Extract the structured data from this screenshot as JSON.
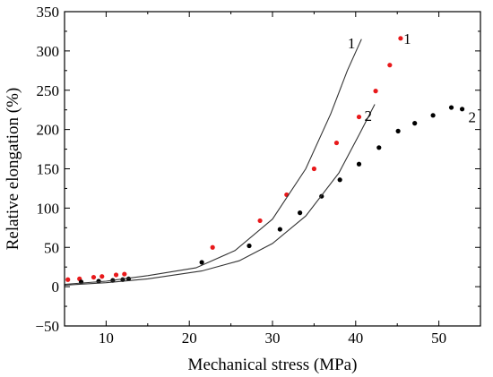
{
  "chart_data": {
    "type": "scatter",
    "xlabel": "Mechanical stress (MPa)",
    "ylabel": "Relative elongation (%)",
    "xlim": [
      5,
      55
    ],
    "ylim": [
      -50,
      350
    ],
    "xticks": [
      10,
      20,
      30,
      40,
      50
    ],
    "yticks": [
      -50,
      0,
      50,
      100,
      150,
      200,
      250,
      300,
      350
    ],
    "grid": false,
    "series": [
      {
        "name": "1",
        "kind": "points",
        "color": "#e8191b",
        "x": [
          5.4,
          6.8,
          8.5,
          9.5,
          11.2,
          12.2,
          22.8,
          28.5,
          31.7,
          35.0,
          37.7,
          40.4,
          42.4,
          44.1,
          45.4
        ],
        "y": [
          9,
          10,
          12,
          13,
          15,
          16,
          50,
          84,
          117,
          150,
          183,
          216,
          249,
          282,
          316
        ]
      },
      {
        "name": "2",
        "kind": "points",
        "color": "#000000",
        "x": [
          7.0,
          9.1,
          10.8,
          12.0,
          12.7,
          21.5,
          27.2,
          30.9,
          33.3,
          35.9,
          38.1,
          40.4,
          42.8,
          45.1,
          47.1,
          49.3,
          51.5,
          52.8
        ],
        "y": [
          6,
          7,
          8,
          9,
          10,
          31,
          52,
          73,
          94,
          115,
          136,
          156,
          177,
          198,
          208,
          218,
          228,
          226
        ]
      },
      {
        "name": "1",
        "kind": "line",
        "color": "#333333",
        "x": [
          5,
          10,
          15,
          20.8,
          25.5,
          30,
          34,
          37,
          39,
          40.7
        ],
        "y": [
          3,
          7,
          14,
          24,
          46,
          86,
          150,
          220,
          275,
          315
        ]
      },
      {
        "name": "2",
        "kind": "line",
        "color": "#333333",
        "x": [
          5,
          10,
          15,
          21.5,
          26,
          30,
          34,
          38,
          40.5,
          42.3
        ],
        "y": [
          2,
          5,
          10,
          20,
          33,
          55,
          90,
          145,
          195,
          232
        ]
      }
    ],
    "annotations": [
      {
        "text": "1",
        "x": 39.5,
        "y": 310
      },
      {
        "text": "1",
        "x": 46.2,
        "y": 316
      },
      {
        "text": "2",
        "x": 41.5,
        "y": 218
      },
      {
        "text": "2",
        "x": 54.0,
        "y": 216
      }
    ]
  }
}
